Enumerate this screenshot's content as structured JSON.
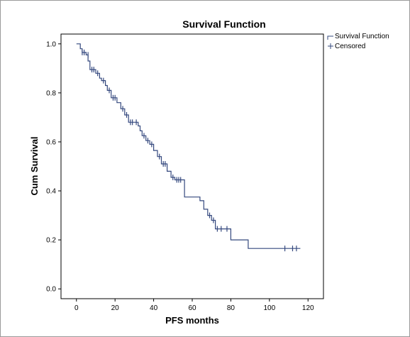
{
  "chart_data": {
    "type": "line",
    "title": "Survival Function",
    "xlabel": "PFS months",
    "ylabel": "Cum Survival",
    "xlim": [
      -8,
      128
    ],
    "ylim": [
      -0.04,
      1.04
    ],
    "x_ticks": [
      0,
      20,
      40,
      60,
      80,
      100,
      120
    ],
    "y_ticks": [
      0.0,
      0.2,
      0.4,
      0.6,
      0.8,
      1.0
    ],
    "x_tick_labels": [
      "0",
      "20",
      "40",
      "60",
      "80",
      "100",
      "120"
    ],
    "y_tick_labels": [
      "0.0",
      "0.2",
      "0.4",
      "0.6",
      "0.8",
      "1.0"
    ],
    "grid": false,
    "legend_position": "top-right",
    "line_color": "#34487e",
    "series": [
      {
        "name": "Survival Function",
        "kind": "step",
        "points": [
          [
            0,
            1.0
          ],
          [
            2,
            0.98
          ],
          [
            3,
            0.965
          ],
          [
            5,
            0.955
          ],
          [
            6,
            0.93
          ],
          [
            7,
            0.895
          ],
          [
            10,
            0.88
          ],
          [
            12,
            0.86
          ],
          [
            13,
            0.85
          ],
          [
            15,
            0.83
          ],
          [
            16,
            0.81
          ],
          [
            18,
            0.78
          ],
          [
            21,
            0.76
          ],
          [
            23,
            0.735
          ],
          [
            25,
            0.71
          ],
          [
            27,
            0.68
          ],
          [
            32,
            0.665
          ],
          [
            33,
            0.645
          ],
          [
            34,
            0.625
          ],
          [
            36,
            0.605
          ],
          [
            38,
            0.59
          ],
          [
            40,
            0.565
          ],
          [
            42,
            0.54
          ],
          [
            44,
            0.51
          ],
          [
            47,
            0.48
          ],
          [
            49,
            0.455
          ],
          [
            51,
            0.445
          ],
          [
            56,
            0.375
          ],
          [
            64,
            0.36
          ],
          [
            66,
            0.325
          ],
          [
            68,
            0.3
          ],
          [
            70,
            0.28
          ],
          [
            72,
            0.245
          ],
          [
            80,
            0.2
          ],
          [
            89,
            0.165
          ],
          [
            116,
            0.165
          ]
        ]
      },
      {
        "name": "Censored",
        "kind": "markers",
        "points": [
          [
            3,
            0.965
          ],
          [
            4,
            0.965
          ],
          [
            6,
            0.955
          ],
          [
            8,
            0.895
          ],
          [
            9,
            0.895
          ],
          [
            11,
            0.88
          ],
          [
            14,
            0.85
          ],
          [
            17,
            0.81
          ],
          [
            19,
            0.78
          ],
          [
            20,
            0.78
          ],
          [
            24,
            0.735
          ],
          [
            26,
            0.71
          ],
          [
            28,
            0.68
          ],
          [
            29,
            0.68
          ],
          [
            31,
            0.68
          ],
          [
            35,
            0.625
          ],
          [
            37,
            0.605
          ],
          [
            39,
            0.59
          ],
          [
            43,
            0.54
          ],
          [
            45,
            0.51
          ],
          [
            46,
            0.51
          ],
          [
            50,
            0.455
          ],
          [
            52,
            0.445
          ],
          [
            53,
            0.445
          ],
          [
            54,
            0.445
          ],
          [
            69,
            0.3
          ],
          [
            71,
            0.28
          ],
          [
            73,
            0.245
          ],
          [
            75,
            0.245
          ],
          [
            78,
            0.245
          ],
          [
            108,
            0.165
          ],
          [
            112,
            0.165
          ],
          [
            114,
            0.165
          ]
        ]
      }
    ]
  }
}
